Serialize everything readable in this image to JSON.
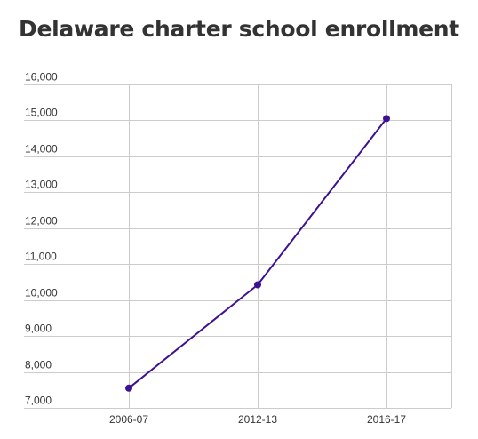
{
  "chart_data": {
    "type": "line",
    "title": "Delaware charter school enrollment",
    "xlabel": "",
    "ylabel": "",
    "categories": [
      "2006-07",
      "2012-13",
      "2016-17"
    ],
    "series": [
      {
        "values": [
          7550,
          10425,
          15050
        ]
      }
    ],
    "ylim": [
      7000,
      16000
    ],
    "yticks": [
      7000,
      8000,
      9000,
      10000,
      11000,
      12000,
      13000,
      14000,
      15000,
      16000
    ],
    "ytick_labels": [
      "7,000",
      "8,000",
      "9,000",
      "10,000",
      "11,000",
      "12,000",
      "13,000",
      "14,000",
      "15,000",
      "16,000"
    ],
    "grid": true,
    "legend": "none"
  },
  "colors": {
    "line": "#3d1191",
    "grid": "#cccccc",
    "text": "#333333"
  }
}
